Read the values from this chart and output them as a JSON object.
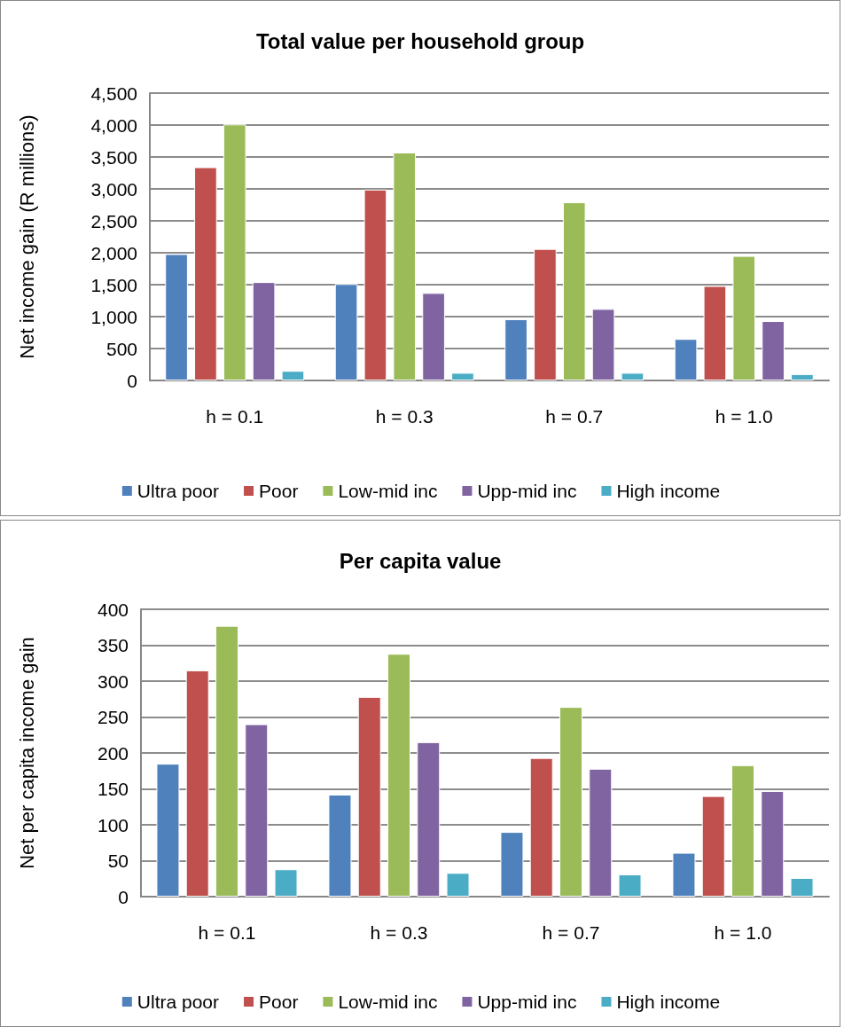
{
  "chart_data": [
    {
      "type": "bar",
      "title": "Total value per household group",
      "ylabel": "Net income gain (R millions)",
      "categories": [
        "h = 0.1",
        "h = 0.3",
        "h = 0.7",
        "h = 1.0"
      ],
      "series": [
        {
          "name": "Ultra poor",
          "color": "#4f81bd",
          "values": [
            1980,
            1510,
            960,
            650
          ]
        },
        {
          "name": "Poor",
          "color": "#c0504d",
          "values": [
            3340,
            2990,
            2060,
            1480
          ]
        },
        {
          "name": "Low-mid inc",
          "color": "#9bbb59",
          "values": [
            4010,
            3570,
            2790,
            1950
          ]
        },
        {
          "name": "Upp-mid inc",
          "color": "#8064a2",
          "values": [
            1540,
            1370,
            1120,
            930
          ]
        },
        {
          "name": "High income",
          "color": "#4bacc6",
          "values": [
            150,
            120,
            120,
            100
          ]
        }
      ],
      "ylim": [
        0,
        4500
      ],
      "yticks": [
        0,
        500,
        {
          "value": 1000,
          "label": "1,000"
        },
        {
          "value": 1500,
          "label": "1,500"
        },
        {
          "value": 2000,
          "label": "2,000"
        },
        {
          "value": 2500,
          "label": "2,500"
        },
        {
          "value": 3000,
          "label": "3,000"
        },
        {
          "value": 3500,
          "label": "3,500"
        },
        {
          "value": 4000,
          "label": "4,000"
        },
        {
          "value": 4500,
          "label": "4,500"
        }
      ],
      "grid": "y",
      "legend": "bottom"
    },
    {
      "type": "bar",
      "title": "Per capita value",
      "ylabel": "Net per capita income gain",
      "categories": [
        "h = 0.1",
        "h = 0.3",
        "h = 0.7",
        "h = 1.0"
      ],
      "series": [
        {
          "name": "Ultra poor",
          "color": "#4f81bd",
          "values": [
            185,
            142,
            90,
            61
          ]
        },
        {
          "name": "Poor",
          "color": "#c0504d",
          "values": [
            315,
            278,
            193,
            140
          ]
        },
        {
          "name": "Low-mid inc",
          "color": "#9bbb59",
          "values": [
            377,
            338,
            264,
            183
          ]
        },
        {
          "name": "Upp-mid inc",
          "color": "#8064a2",
          "values": [
            240,
            215,
            178,
            147
          ]
        },
        {
          "name": "High income",
          "color": "#4bacc6",
          "values": [
            38,
            33,
            31,
            26
          ]
        }
      ],
      "ylim": [
        0,
        400
      ],
      "yticks": [
        0,
        50,
        100,
        150,
        200,
        250,
        300,
        350,
        400
      ],
      "grid": "y",
      "legend": "bottom"
    }
  ]
}
